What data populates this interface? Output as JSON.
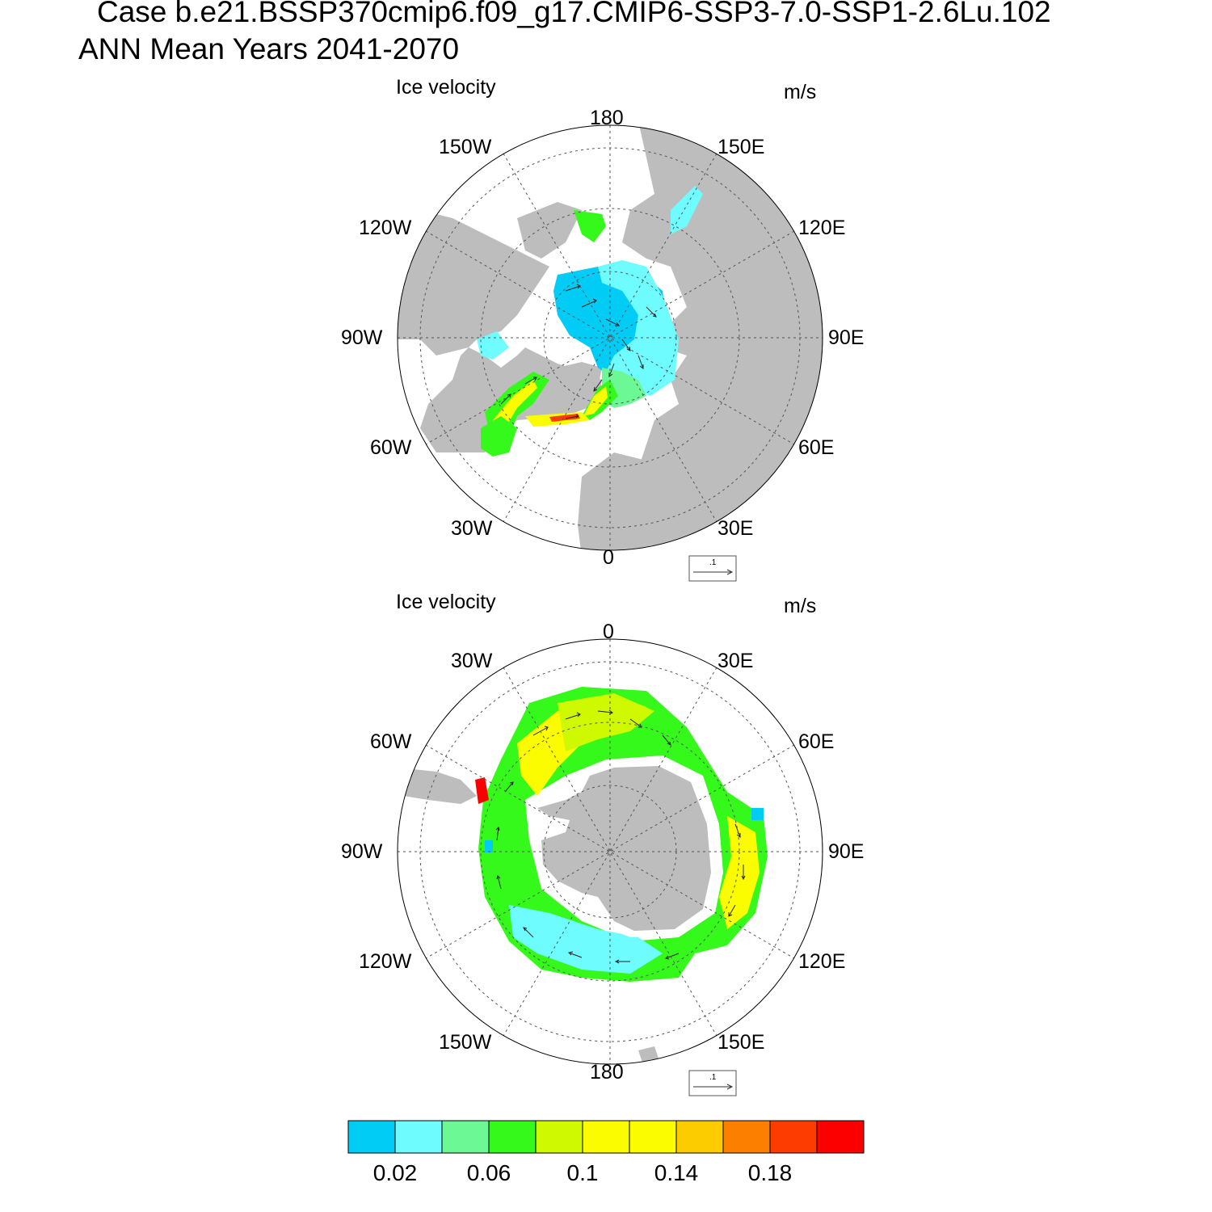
{
  "header": {
    "case_title": "Case b.e21.BSSP370cmip6.f09_g17.CMIP6-SSP3-7.0-SSP1-2.6Lu.102",
    "period_title": "ANN Mean   Years 2041-2070"
  },
  "panels": [
    {
      "name": "north",
      "left_string": "Ice velocity",
      "right_string": "m/s",
      "lon_labels": [
        "180",
        "150E",
        "120E",
        "90E",
        "60E",
        "30E",
        "0",
        "30W",
        "60W",
        "90W",
        "120W",
        "150W"
      ],
      "ref_vector_label": ".1"
    },
    {
      "name": "south",
      "left_string": "Ice velocity",
      "right_string": "m/s",
      "lon_labels": [
        "0",
        "30E",
        "60E",
        "90E",
        "120E",
        "150E",
        "180",
        "150W",
        "120W",
        "90W",
        "60W",
        "30W"
      ],
      "ref_vector_label": ".1"
    }
  ],
  "colorbar": {
    "colors": [
      "#00ccf5",
      "#6efcff",
      "#6cf894",
      "#35f91a",
      "#cff900",
      "#fcfc00",
      "#fcfc00",
      "#fccb00",
      "#fc7f00",
      "#fc3c00",
      "#fc0000"
    ],
    "tick_labels": [
      "0.02",
      "0.06",
      "0.1",
      "0.14",
      "0.18"
    ]
  },
  "chart_data": {
    "type": "heatmap",
    "variable": "Ice velocity",
    "units": "m/s",
    "projection": "polar stereographic",
    "contour_levels": [
      0.02,
      0.04,
      0.06,
      0.08,
      0.1,
      0.12,
      0.14,
      0.16,
      0.18,
      0.2
    ],
    "colorbar_tick_labels": [
      0.02,
      0.06,
      0.1,
      0.14,
      0.18
    ],
    "reference_vector": 0.1,
    "land_color": "#bdbdbd"
  }
}
